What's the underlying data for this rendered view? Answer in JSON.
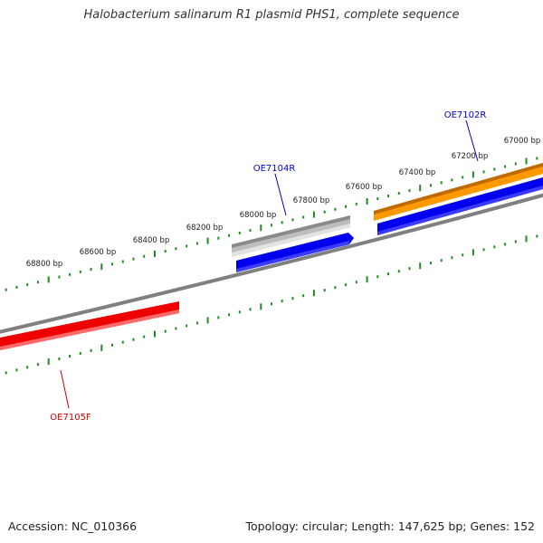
{
  "title": "Halobacterium salinarum R1 plasmid PHS1, complete sequence",
  "footer": {
    "accession": "Accession: NC_010366",
    "topology": "Topology: circular; Length: 147,625 bp; Genes: 152"
  },
  "ruler": {
    "unit": "bp",
    "labeled_ticks": [
      "67000 bp",
      "67200 bp",
      "67400 bp",
      "67600 bp",
      "67800 bp",
      "68000 bp",
      "68200 bp",
      "68400 bp",
      "68600 bp",
      "68800 bp"
    ]
  },
  "genes": [
    {
      "name": "OE7102R",
      "color": "#ff8c00",
      "label_color": "#0000cc"
    },
    {
      "name": "OE7104R",
      "color": "#c0c0c0",
      "label_color": "#0000cc"
    },
    {
      "name": "OE7105F",
      "color": "#ee0000",
      "label_color": "#cc0000"
    }
  ],
  "colors": {
    "backbone": "#808080",
    "tick": "#228b22",
    "cds_track": "#0000ee"
  }
}
